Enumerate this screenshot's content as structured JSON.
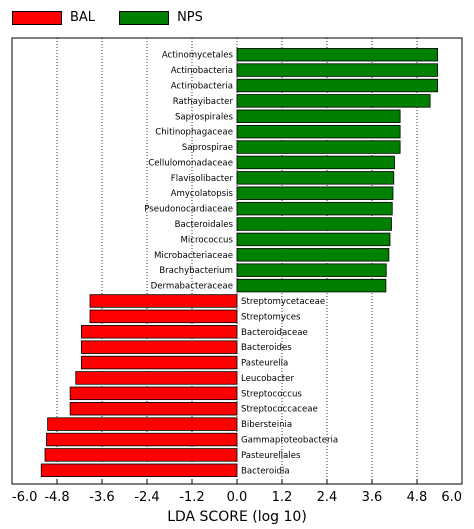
{
  "chart_data": {
    "type": "bar",
    "orientation": "horizontal",
    "xlabel": "LDA SCORE (log 10)",
    "xlim": [
      -6.0,
      6.0
    ],
    "xticks": [
      "-6.0",
      "-4.8",
      "-3.6",
      "-2.4",
      "-1.2",
      "0.0",
      "1.2",
      "2.4",
      "3.6",
      "4.8",
      "6.0"
    ],
    "grid": "vertical-dotted",
    "legend": {
      "placement": "top-left",
      "entries": [
        {
          "name": "BAL",
          "color": "#ff0000"
        },
        {
          "name": "NPS",
          "color": "#008000"
        }
      ]
    },
    "bars": [
      {
        "label": "Actinomycetales",
        "value": 5.35,
        "group": "NPS"
      },
      {
        "label": "Actinobacteria",
        "value": 5.35,
        "group": "NPS"
      },
      {
        "label": "Actinobacteria",
        "value": 5.35,
        "group": "NPS"
      },
      {
        "label": "Rathayibacter",
        "value": 5.15,
        "group": "NPS"
      },
      {
        "label": "Saprospirales",
        "value": 4.35,
        "group": "NPS"
      },
      {
        "label": "Chitinophagaceae",
        "value": 4.35,
        "group": "NPS"
      },
      {
        "label": "Saprospirae",
        "value": 4.35,
        "group": "NPS"
      },
      {
        "label": "Cellulomonadaceae",
        "value": 4.2,
        "group": "NPS"
      },
      {
        "label": "Flavisolibacter",
        "value": 4.18,
        "group": "NPS"
      },
      {
        "label": "Amycolatopsis",
        "value": 4.16,
        "group": "NPS"
      },
      {
        "label": "Pseudonocardiaceae",
        "value": 4.14,
        "group": "NPS"
      },
      {
        "label": "Bacteroidales",
        "value": 4.12,
        "group": "NPS"
      },
      {
        "label": "Micrococcus",
        "value": 4.08,
        "group": "NPS"
      },
      {
        "label": "Microbacteriaceae",
        "value": 4.05,
        "group": "NPS"
      },
      {
        "label": "Brachybacterium",
        "value": 3.98,
        "group": "NPS"
      },
      {
        "label": "Dermabacteraceae",
        "value": 3.97,
        "group": "NPS"
      },
      {
        "label": "Streptomycetaceae",
        "value": -3.92,
        "group": "BAL"
      },
      {
        "label": "Streptomyces",
        "value": -3.92,
        "group": "BAL"
      },
      {
        "label": "Bacteroidaceae",
        "value": -4.15,
        "group": "BAL"
      },
      {
        "label": "Bacteroides",
        "value": -4.15,
        "group": "BAL"
      },
      {
        "label": "Pasteurella",
        "value": -4.15,
        "group": "BAL"
      },
      {
        "label": "Leucobacter",
        "value": -4.3,
        "group": "BAL"
      },
      {
        "label": "Streptococcus",
        "value": -4.45,
        "group": "BAL"
      },
      {
        "label": "Streptococcaceae",
        "value": -4.45,
        "group": "BAL"
      },
      {
        "label": "Bibersteinia",
        "value": -5.05,
        "group": "BAL"
      },
      {
        "label": "Gammaproteobacteria",
        "value": -5.08,
        "group": "BAL"
      },
      {
        "label": "Pasteurellales",
        "value": -5.12,
        "group": "BAL"
      },
      {
        "label": "Bacteroidia",
        "value": -5.22,
        "group": "BAL"
      }
    ]
  }
}
